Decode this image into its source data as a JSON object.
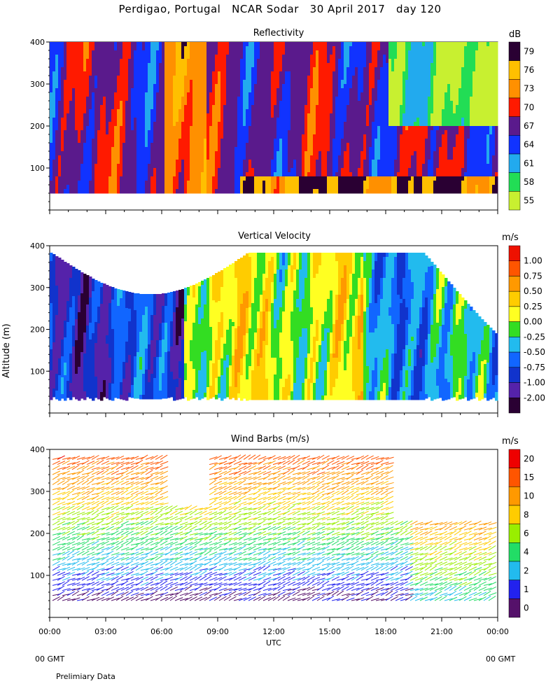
{
  "header": {
    "title": "Perdigao, Portugal   NCAR Sodar   30 April 2017   day 120"
  },
  "footer": {
    "left_gmt": "00 GMT",
    "right_gmt": "00 GMT",
    "note": "Prelimiary Data"
  },
  "chart_data": [
    {
      "type": "heatmap",
      "title": "Reflectivity",
      "colorbar_unit": "dB",
      "colorbar_ticks": [
        "79",
        "76",
        "73",
        "70",
        "67",
        "64",
        "61",
        "58",
        "55"
      ],
      "colors": [
        "#2a0033",
        "#ffc000",
        "#ff9000",
        "#ff1a00",
        "#5a1a8c",
        "#1133ff",
        "#22aaee",
        "#22dd55",
        "#c8f030"
      ],
      "ylabel": "",
      "ylim": [
        0,
        400
      ],
      "yticks": [
        "100",
        "200",
        "300",
        "400"
      ],
      "xlim": [
        "00:00",
        "00:00"
      ],
      "valid_altitude_min": 40
    },
    {
      "type": "heatmap",
      "title": "Vertical Velocity",
      "colorbar_unit": "m/s",
      "colorbar_ticks": [
        "1.00",
        "0.75",
        "0.50",
        "0.25",
        "0.00",
        "-0.25",
        "-0.50",
        "-0.75",
        "-1.00",
        "-2.00"
      ],
      "colors": [
        "#ee1100",
        "#ff5500",
        "#ff9900",
        "#ffcc00",
        "#ffff22",
        "#33dd22",
        "#22bbee",
        "#1166ff",
        "#1133cc",
        "#5522aa",
        "#2a0033"
      ],
      "ylabel": "Altitude (m)",
      "ylim": [
        0,
        400
      ],
      "yticks": [
        "100",
        "200",
        "300",
        "400"
      ],
      "valid_altitude_min": 40
    },
    {
      "type": "scatter",
      "title": "Wind Barbs (m/s)",
      "colorbar_unit": "m/s",
      "colorbar_ticks": [
        "20",
        "15",
        "10",
        "8",
        "6",
        "4",
        "2",
        "1",
        "0"
      ],
      "colors": [
        "#ee0000",
        "#ff5500",
        "#ff9900",
        "#ffcc00",
        "#99ee00",
        "#22dd66",
        "#22bbee",
        "#2222ee",
        "#55116a"
      ],
      "xlabel": "UTC",
      "xticks": [
        "00:00",
        "03:00",
        "06:00",
        "09:00",
        "12:00",
        "15:00",
        "18:00",
        "21:00",
        "00:00"
      ],
      "ylim": [
        0,
        400
      ],
      "yticks": [
        "100",
        "200",
        "300",
        "400"
      ]
    }
  ]
}
